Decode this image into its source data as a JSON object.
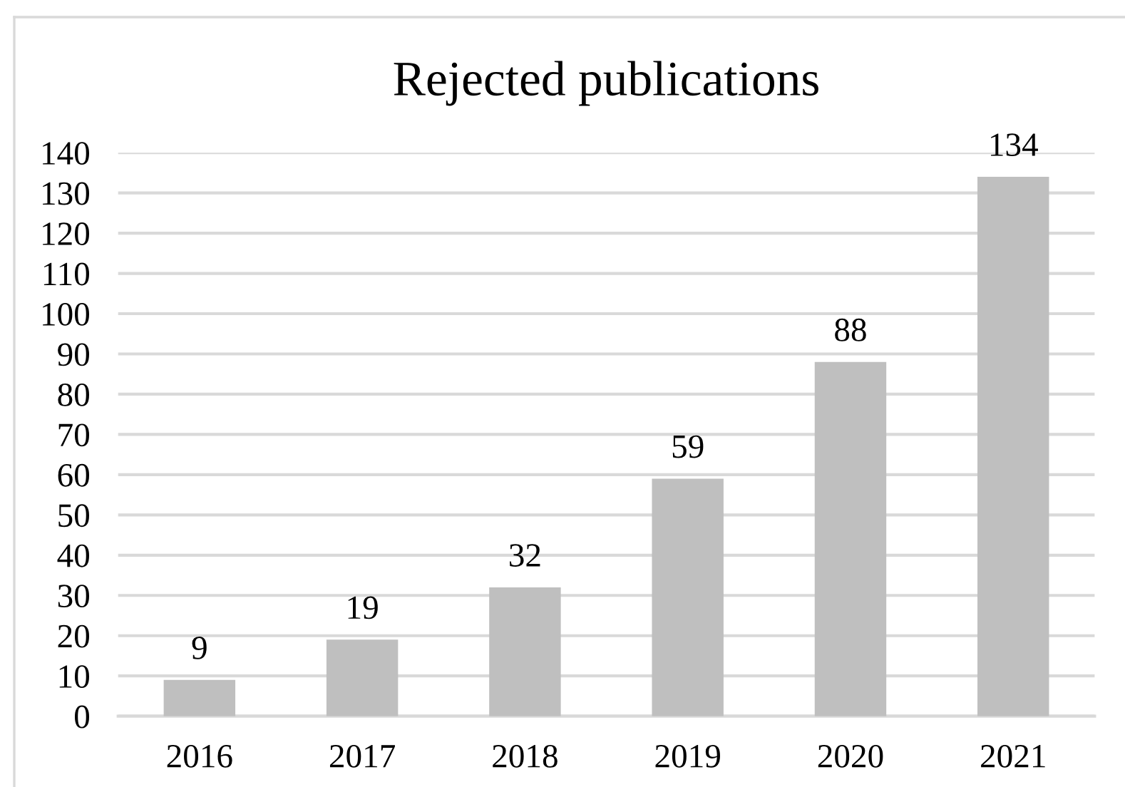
{
  "chart_data": {
    "type": "bar",
    "title": "Rejected publications",
    "categories": [
      "2016",
      "2017",
      "2018",
      "2019",
      "2020",
      "2021"
    ],
    "values": [
      9,
      19,
      32,
      59,
      88,
      134
    ],
    "color": "#bfbfbf",
    "ylim": [
      0,
      140
    ],
    "yticks": [
      0,
      10,
      20,
      30,
      40,
      50,
      60,
      70,
      80,
      90,
      100,
      110,
      120,
      130,
      140
    ],
    "grid": "y",
    "data_labels": true
  }
}
